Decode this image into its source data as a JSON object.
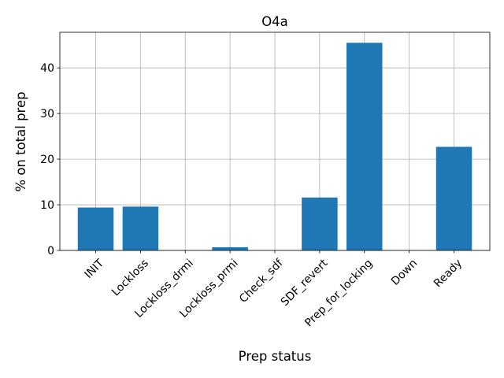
{
  "chart_data": {
    "type": "bar",
    "title": "O4a",
    "xlabel": "Prep status",
    "ylabel": "% on total prep",
    "categories": [
      "INIT",
      "Lockloss",
      "Lockloss_drmi",
      "Lockloss_prmi",
      "Check_sdf",
      "SDF_revert",
      "Prep_for_locking",
      "Down",
      "Ready"
    ],
    "values": [
      9.4,
      9.6,
      0,
      0.7,
      0,
      11.6,
      45.5,
      0,
      22.7
    ],
    "yticks": [
      0,
      10,
      20,
      30,
      40
    ],
    "ylim": [
      0,
      47.8
    ],
    "grid": true,
    "bar_color": "#1f77b4"
  }
}
